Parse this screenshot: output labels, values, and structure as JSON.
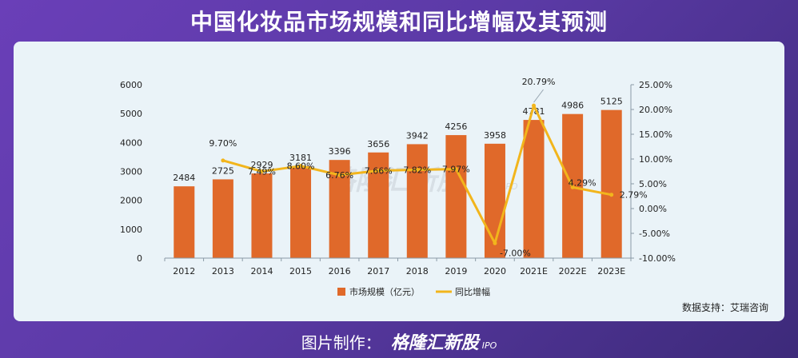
{
  "header": {
    "title": "中国化妆品市场规模和同比增幅及其预测"
  },
  "source": "数据支持：艾瑞咨询",
  "watermark": "格隆汇新股",
  "watermark_sub": "IPO",
  "footer": {
    "label": "图片制作：",
    "brand": "格隆汇新股",
    "brand_sub": "IPO"
  },
  "colors": {
    "bar": "#e0692a",
    "line": "#f2b51c",
    "panel": "#eaf3f8"
  },
  "chart_data": {
    "type": "bar",
    "categories": [
      "2012",
      "2013",
      "2014",
      "2015",
      "2016",
      "2017",
      "2018",
      "2019",
      "2020",
      "2021E",
      "2022E",
      "2023E"
    ],
    "series": [
      {
        "name": "市场规模（亿元）",
        "type": "bar",
        "axis": "left",
        "values": [
          2484,
          2725,
          2929,
          3181,
          3396,
          3656,
          3942,
          4256,
          3958,
          4781,
          4986,
          5125
        ],
        "labels": [
          "2484",
          "2725",
          "2929",
          "3181",
          "3396",
          "3656",
          "3942",
          "4256",
          "3958",
          "4781",
          "4986",
          "5125"
        ]
      },
      {
        "name": "同比增幅",
        "type": "line",
        "axis": "right",
        "values": [
          null,
          9.7,
          7.49,
          8.6,
          6.76,
          7.66,
          7.82,
          7.97,
          -7.0,
          20.79,
          4.29,
          2.79
        ],
        "labels": [
          "",
          "9.70%",
          "7.49%",
          "8.60%",
          "6.76%",
          "7.66%",
          "7.82%",
          "7.97%",
          "-7.00%",
          "20.79%",
          "4.29%",
          "2.79%"
        ]
      }
    ],
    "y_left": {
      "ylim": [
        0,
        6000
      ],
      "ticks": [
        "0",
        "1000",
        "2000",
        "3000",
        "4000",
        "5000",
        "6000"
      ]
    },
    "y_right": {
      "ylim": [
        -10,
        25
      ],
      "ticks": [
        "-10.00%",
        "-5.00%",
        "0.00%",
        "5.00%",
        "10.00%",
        "15.00%",
        "20.00%",
        "25.00%"
      ]
    },
    "legend_position": "bottom",
    "grid": false
  }
}
